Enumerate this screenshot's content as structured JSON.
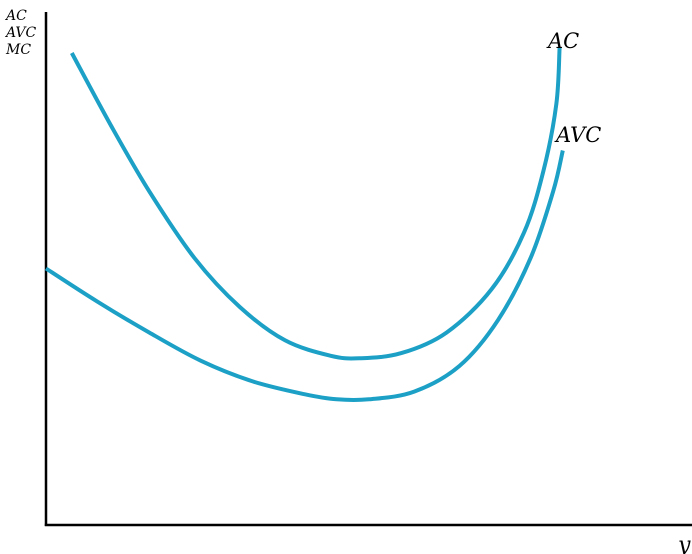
{
  "chart_data": {
    "type": "line",
    "title": "",
    "xlabel": "y",
    "ylabel_lines": [
      "AC",
      "AVC",
      "MC"
    ],
    "xlim": [
      0,
      10
    ],
    "ylim": [
      0,
      10
    ],
    "grid": false,
    "legend": "none",
    "colors": {
      "curve": "#1ca0c6",
      "axis": "#000000"
    },
    "series": [
      {
        "name": "AC",
        "points": [
          [
            0.4,
            9.2
          ],
          [
            1.0,
            7.8
          ],
          [
            1.6,
            6.5
          ],
          [
            2.3,
            5.2
          ],
          [
            3.0,
            4.25
          ],
          [
            3.7,
            3.6
          ],
          [
            4.4,
            3.3
          ],
          [
            4.85,
            3.25
          ],
          [
            5.5,
            3.35
          ],
          [
            6.2,
            3.75
          ],
          [
            6.9,
            4.6
          ],
          [
            7.4,
            5.7
          ],
          [
            7.7,
            6.9
          ],
          [
            7.9,
            8.2
          ],
          [
            7.95,
            9.3
          ]
        ]
      },
      {
        "name": "AVC",
        "points": [
          [
            0.0,
            5.0
          ],
          [
            0.8,
            4.35
          ],
          [
            1.6,
            3.75
          ],
          [
            2.4,
            3.2
          ],
          [
            3.2,
            2.8
          ],
          [
            4.0,
            2.55
          ],
          [
            4.5,
            2.45
          ],
          [
            5.0,
            2.45
          ],
          [
            5.7,
            2.6
          ],
          [
            6.4,
            3.1
          ],
          [
            7.0,
            4.0
          ],
          [
            7.5,
            5.2
          ],
          [
            7.85,
            6.5
          ],
          [
            8.0,
            7.3
          ]
        ]
      }
    ]
  }
}
